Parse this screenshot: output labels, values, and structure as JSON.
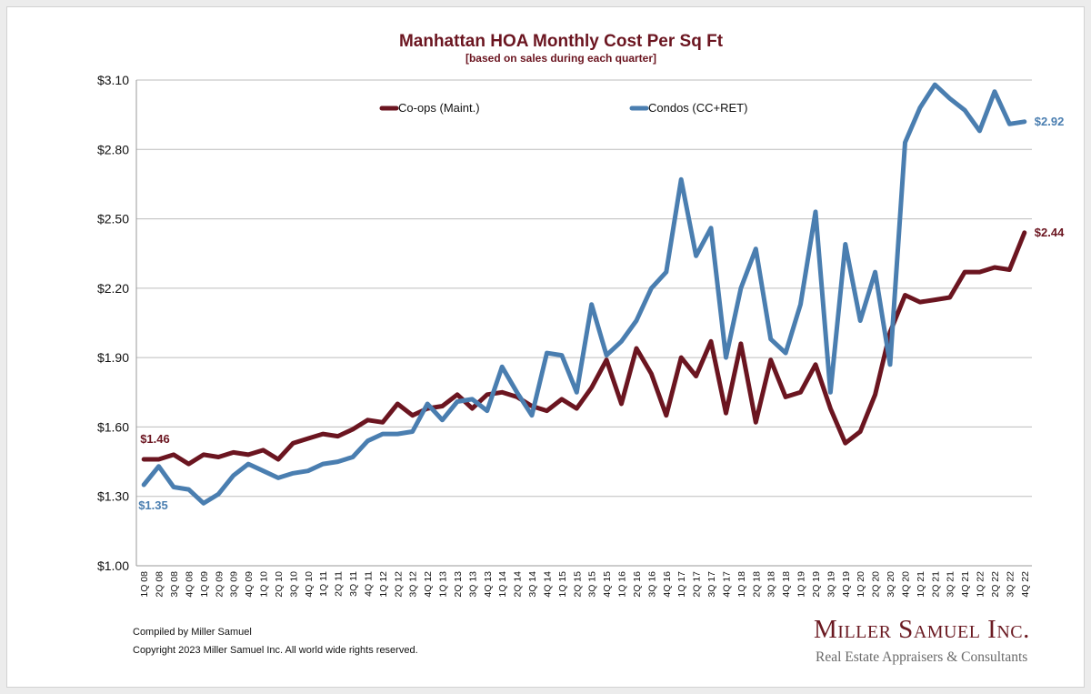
{
  "chart_data": {
    "type": "line",
    "title": "Manhattan HOA Monthly Cost Per Sq Ft",
    "subtitle": "[based on sales during each quarter]",
    "xlabel": "",
    "ylabel": "",
    "ylim": [
      1.0,
      3.1
    ],
    "yticks": [
      1.0,
      1.3,
      1.6,
      1.9,
      2.2,
      2.5,
      2.8,
      3.1
    ],
    "ytick_labels": [
      "$1.00",
      "$1.30",
      "$1.60",
      "$1.90",
      "$2.20",
      "$2.50",
      "$2.80",
      "$3.10"
    ],
    "grid": "horizontal",
    "legend": "top-center",
    "categories": [
      "1Q 08",
      "2Q 08",
      "3Q 08",
      "4Q 08",
      "1Q 09",
      "2Q 09",
      "3Q 09",
      "4Q 09",
      "1Q 10",
      "2Q 10",
      "3Q 10",
      "4Q 10",
      "1Q 11",
      "2Q 11",
      "3Q 11",
      "4Q 11",
      "1Q 12",
      "2Q 12",
      "3Q 12",
      "4Q 12",
      "1Q 13",
      "2Q 13",
      "3Q 13",
      "4Q 13",
      "1Q 14",
      "2Q 14",
      "3Q 14",
      "4Q 14",
      "1Q 15",
      "2Q 15",
      "3Q 15",
      "4Q 15",
      "1Q 16",
      "2Q 16",
      "3Q 16",
      "4Q 16",
      "1Q 17",
      "2Q 17",
      "3Q 17",
      "4Q 17",
      "1Q 18",
      "2Q 18",
      "3Q 18",
      "4Q 18",
      "1Q 19",
      "2Q 19",
      "3Q 19",
      "4Q 19",
      "1Q 20",
      "2Q 20",
      "3Q 20",
      "4Q 20",
      "1Q 21",
      "2Q 21",
      "3Q 21",
      "4Q 21",
      "1Q 22",
      "2Q 22",
      "3Q 22",
      "4Q 22"
    ],
    "series": [
      {
        "name": "Co-ops (Maint.)",
        "color": "#6b1520",
        "start_label": "$1.46",
        "end_label": "$2.44",
        "values": [
          1.46,
          1.46,
          1.48,
          1.44,
          1.48,
          1.47,
          1.49,
          1.48,
          1.5,
          1.46,
          1.53,
          1.55,
          1.57,
          1.56,
          1.59,
          1.63,
          1.62,
          1.7,
          1.65,
          1.68,
          1.69,
          1.74,
          1.68,
          1.74,
          1.75,
          1.73,
          1.69,
          1.67,
          1.72,
          1.68,
          1.77,
          1.89,
          1.7,
          1.94,
          1.83,
          1.65,
          1.9,
          1.82,
          1.97,
          1.66,
          1.96,
          1.62,
          1.89,
          1.73,
          1.75,
          1.87,
          1.68,
          1.53,
          1.58,
          1.74,
          2.01,
          2.17,
          2.14,
          2.15,
          2.16,
          2.27,
          2.27,
          2.29,
          2.28,
          2.44
        ]
      },
      {
        "name": "Condos (CC+RET)",
        "color": "#4a7eb0",
        "start_label": "$1.35",
        "end_label": "$2.92",
        "values": [
          1.35,
          1.43,
          1.34,
          1.33,
          1.27,
          1.31,
          1.39,
          1.44,
          1.41,
          1.38,
          1.4,
          1.41,
          1.44,
          1.45,
          1.47,
          1.54,
          1.57,
          1.57,
          1.58,
          1.7,
          1.63,
          1.71,
          1.72,
          1.67,
          1.86,
          1.75,
          1.65,
          1.92,
          1.91,
          1.75,
          2.13,
          1.91,
          1.97,
          2.06,
          2.2,
          2.27,
          2.67,
          2.34,
          2.46,
          1.9,
          2.2,
          2.37,
          1.98,
          1.92,
          2.13,
          2.53,
          1.75,
          2.39,
          2.06,
          2.27,
          1.87,
          2.83,
          2.98,
          3.08,
          3.02,
          2.97,
          2.88,
          3.05,
          2.91,
          2.92
        ]
      }
    ]
  },
  "footer": {
    "compiled": "Compiled by Miller Samuel",
    "copyright": "Copyright 2023 Miller Samuel Inc.  All world wide rights reserved.",
    "brand_name": "Miller Samuel Inc.",
    "brand_tagline": "Real Estate Appraisers & Consultants"
  }
}
